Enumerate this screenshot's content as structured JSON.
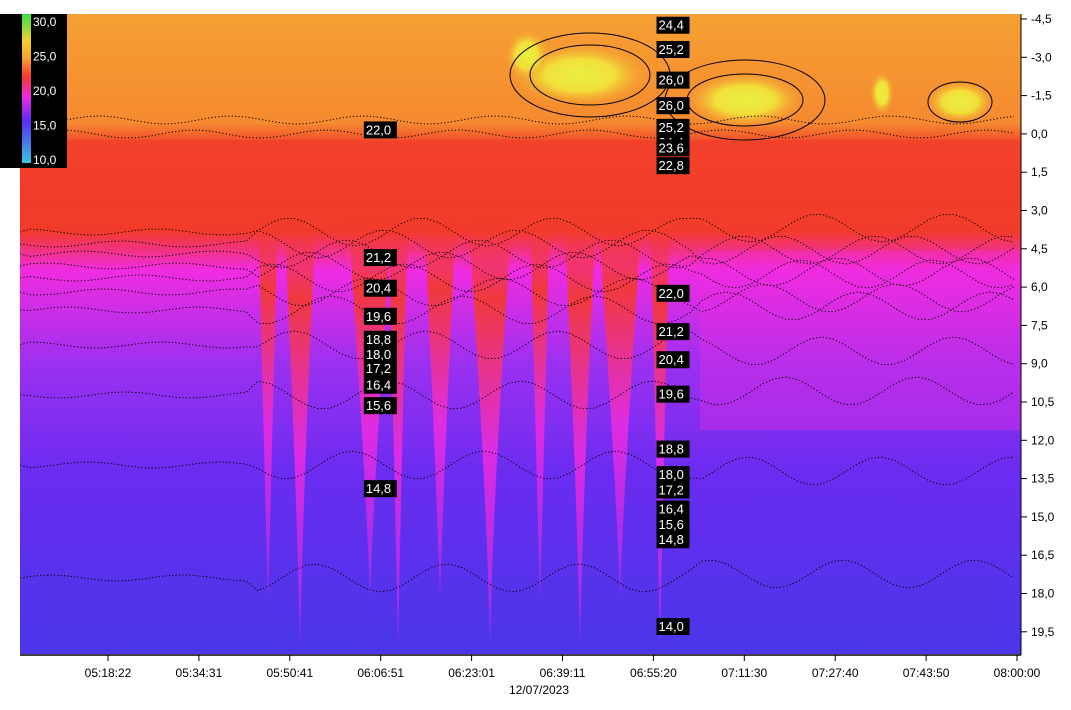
{
  "chart_data": {
    "type": "heatmap",
    "title": "",
    "x_date_label": "12/07/2023",
    "x_ticks": [
      "05:18:22",
      "05:34:31",
      "05:50:41",
      "06:06:51",
      "06:23:01",
      "06:39:11",
      "06:55:20",
      "07:11:30",
      "07:27:40",
      "07:43:50",
      "08:00:00"
    ],
    "y_ticks": [
      "-4,5",
      "-3,0",
      "-1,5",
      "0,0",
      "1,5",
      "3,0",
      "4,5",
      "6,0",
      "7,5",
      "9,0",
      "10,5",
      "12,0",
      "13,5",
      "15,0",
      "16,5",
      "18,0",
      "19,5"
    ],
    "y_range": [
      -4.5,
      19.5
    ],
    "y_inverted": true,
    "color_scale": {
      "labels": [
        "30,0",
        "25,0",
        "20,0",
        "15,0",
        "10,0"
      ],
      "stops": [
        {
          "value": 10,
          "color": "#33c6e0"
        },
        {
          "value": 15,
          "color": "#5a2cf0"
        },
        {
          "value": 20,
          "color": "#f02ce0"
        },
        {
          "value": 22,
          "color": "#f23a2a"
        },
        {
          "value": 25,
          "color": "#f5a032"
        },
        {
          "value": 27,
          "color": "#f5f032"
        },
        {
          "value": 30,
          "color": "#33e044"
        }
      ]
    },
    "contour_labels": [
      {
        "text": "22,0",
        "time": "06:04:00",
        "depth": -0.45
      },
      {
        "text": "21,2",
        "time": "06:04:00",
        "depth": 4.55
      },
      {
        "text": "20,4",
        "time": "06:04:00",
        "depth": 5.75
      },
      {
        "text": "19,6",
        "time": "06:04:00",
        "depth": 6.85
      },
      {
        "text": "18,8",
        "time": "06:04:00",
        "depth": 7.75
      },
      {
        "text": "18,0",
        "time": "06:04:00",
        "depth": 8.35
      },
      {
        "text": "17,2",
        "time": "06:04:00",
        "depth": 8.9
      },
      {
        "text": "16,4",
        "time": "06:04:00",
        "depth": 9.55
      },
      {
        "text": "15,6",
        "time": "06:04:00",
        "depth": 10.35
      },
      {
        "text": "14,8",
        "time": "06:04:00",
        "depth": 13.6
      },
      {
        "text": "24,4",
        "time": "06:56:00",
        "depth": -4.55
      },
      {
        "text": "25,2",
        "time": "06:56:00",
        "depth": -3.6
      },
      {
        "text": "26,0",
        "time": "06:56:00",
        "depth": -2.4
      },
      {
        "text": "26,0",
        "time": "06:56:00",
        "depth": -1.4
      },
      {
        "text": "25,2",
        "time": "06:56:00",
        "depth": -0.55
      },
      {
        "text": "24,4",
        "time": "06:56:00",
        "depth": 0.05
      },
      {
        "text": "23,6",
        "time": "06:56:00",
        "depth": 0.25
      },
      {
        "text": "22,8",
        "time": "06:56:00",
        "depth": 0.95
      },
      {
        "text": "22,0",
        "time": "06:56:00",
        "depth": 5.95
      },
      {
        "text": "21,2",
        "time": "06:56:00",
        "depth": 7.45
      },
      {
        "text": "20,4",
        "time": "06:56:00",
        "depth": 8.55
      },
      {
        "text": "19,6",
        "time": "06:56:00",
        "depth": 9.9
      },
      {
        "text": "18,8",
        "time": "06:56:00",
        "depth": 12.05
      },
      {
        "text": "18,0",
        "time": "06:56:00",
        "depth": 13.05
      },
      {
        "text": "17,2",
        "time": "06:56:00",
        "depth": 13.65
      },
      {
        "text": "16,4",
        "time": "06:56:00",
        "depth": 14.4
      },
      {
        "text": "15,6",
        "time": "06:56:00",
        "depth": 15.0
      },
      {
        "text": "14,8",
        "time": "06:56:00",
        "depth": 15.6
      },
      {
        "text": "14,0",
        "time": "06:56:00",
        "depth": 19.0
      }
    ]
  }
}
